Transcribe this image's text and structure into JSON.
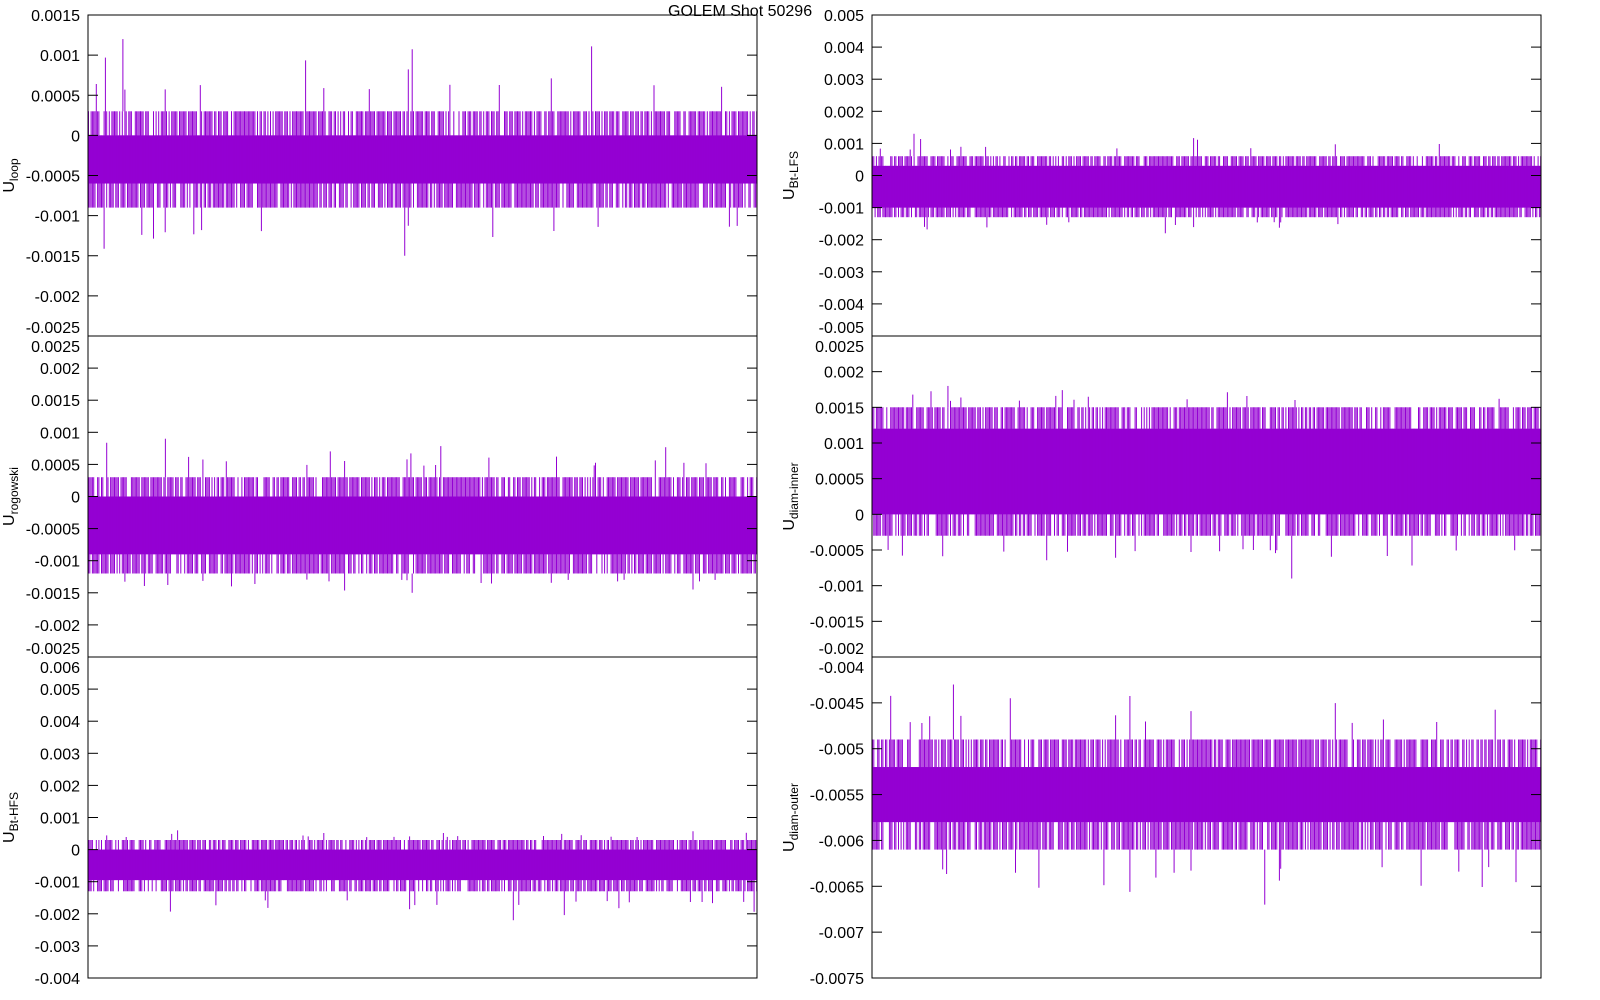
{
  "title": "GOLEM Shot 50296",
  "colors": {
    "series": "#9400d3",
    "axis": "#000000"
  },
  "chart_data": [
    {
      "type": "line",
      "ylabel_main": "U",
      "ylabel_sub": "loop",
      "ylim": [
        -0.0025,
        0.0015
      ],
      "yticks": [
        "0.0015",
        "0.001",
        "0.0005",
        "0",
        "-0.0005",
        "-0.001",
        "-0.0015",
        "-0.002",
        "-0.0025"
      ],
      "tick_values": [
        0.0015,
        0.001,
        0.0005,
        0,
        -0.0005,
        -0.001,
        -0.0015,
        -0.002,
        -0.0025
      ],
      "dense": [
        -0.0006,
        0.0
      ],
      "band": [
        -0.0009,
        0.0003
      ],
      "spikes": [
        -0.0015,
        0.0012
      ],
      "seed": 11
    },
    {
      "type": "line",
      "ylabel_main": "U",
      "ylabel_sub": "Bt-LFS",
      "ylim": [
        -0.005,
        0.005
      ],
      "yticks": [
        "0.005",
        "0.004",
        "0.003",
        "0.002",
        "0.001",
        "0",
        "-0.001",
        "-0.002",
        "-0.003",
        "-0.004",
        "-0.005"
      ],
      "tick_values": [
        0.005,
        0.004,
        0.003,
        0.002,
        0.001,
        0,
        -0.001,
        -0.002,
        -0.003,
        -0.004,
        -0.005
      ],
      "dense": [
        -0.001,
        0.0003
      ],
      "band": [
        -0.0013,
        0.0006
      ],
      "spikes": [
        -0.0018,
        0.0013
      ],
      "seed": 22
    },
    {
      "type": "line",
      "ylabel_main": "U",
      "ylabel_sub": "rogowski",
      "ylim": [
        -0.0025,
        0.0025
      ],
      "yticks": [
        "0.0025",
        "0.002",
        "0.0015",
        "0.001",
        "0.0005",
        "0",
        "-0.0005",
        "-0.001",
        "-0.0015",
        "-0.002",
        "-0.0025"
      ],
      "tick_values": [
        0.0025,
        0.002,
        0.0015,
        0.001,
        0.0005,
        0,
        -0.0005,
        -0.001,
        -0.0015,
        -0.002,
        -0.0025
      ],
      "dense": [
        -0.0009,
        0.0
      ],
      "band": [
        -0.0012,
        0.0003
      ],
      "spikes": [
        -0.0015,
        0.0009
      ],
      "seed": 33
    },
    {
      "type": "line",
      "ylabel_main": "U",
      "ylabel_sub": "diam-inner",
      "ylim": [
        -0.002,
        0.0025
      ],
      "yticks": [
        "0.0025",
        "0.002",
        "0.0015",
        "0.001",
        "0.0005",
        "0",
        "-0.0005",
        "-0.001",
        "-0.0015",
        "-0.002"
      ],
      "tick_values": [
        0.0025,
        0.002,
        0.0015,
        0.001,
        0.0005,
        0,
        -0.0005,
        -0.001,
        -0.0015,
        -0.002
      ],
      "dense": [
        0.0,
        0.0012
      ],
      "band": [
        -0.0003,
        0.0015
      ],
      "spikes": [
        -0.0009,
        0.0018
      ],
      "seed": 44
    },
    {
      "type": "line",
      "ylabel_main": "U",
      "ylabel_sub": "Bt-HFS",
      "ylim": [
        -0.004,
        0.006
      ],
      "yticks": [
        "0.006",
        "0.005",
        "0.004",
        "0.003",
        "0.002",
        "0.001",
        "0",
        "-0.001",
        "-0.002",
        "-0.003",
        "-0.004"
      ],
      "tick_values": [
        0.006,
        0.005,
        0.004,
        0.003,
        0.002,
        0.001,
        0,
        -0.001,
        -0.002,
        -0.003,
        -0.004
      ],
      "dense": [
        -0.00095,
        0.0
      ],
      "band": [
        -0.0013,
        0.0003
      ],
      "spikes": [
        -0.0022,
        0.0006
      ],
      "seed": 55
    },
    {
      "type": "line",
      "ylabel_main": "U",
      "ylabel_sub": "diam-outer",
      "ylim": [
        -0.0075,
        -0.004
      ],
      "yticks": [
        "-0.004",
        "-0.0045",
        "-0.005",
        "-0.0055",
        "-0.006",
        "-0.0065",
        "-0.007",
        "-0.0075"
      ],
      "tick_values": [
        -0.004,
        -0.0045,
        -0.005,
        -0.0055,
        -0.006,
        -0.0065,
        -0.007,
        -0.0075
      ],
      "dense": [
        -0.0058,
        -0.0052
      ],
      "band": [
        -0.0061,
        -0.0049
      ],
      "spikes": [
        -0.0067,
        -0.0043
      ],
      "seed": 66
    }
  ]
}
